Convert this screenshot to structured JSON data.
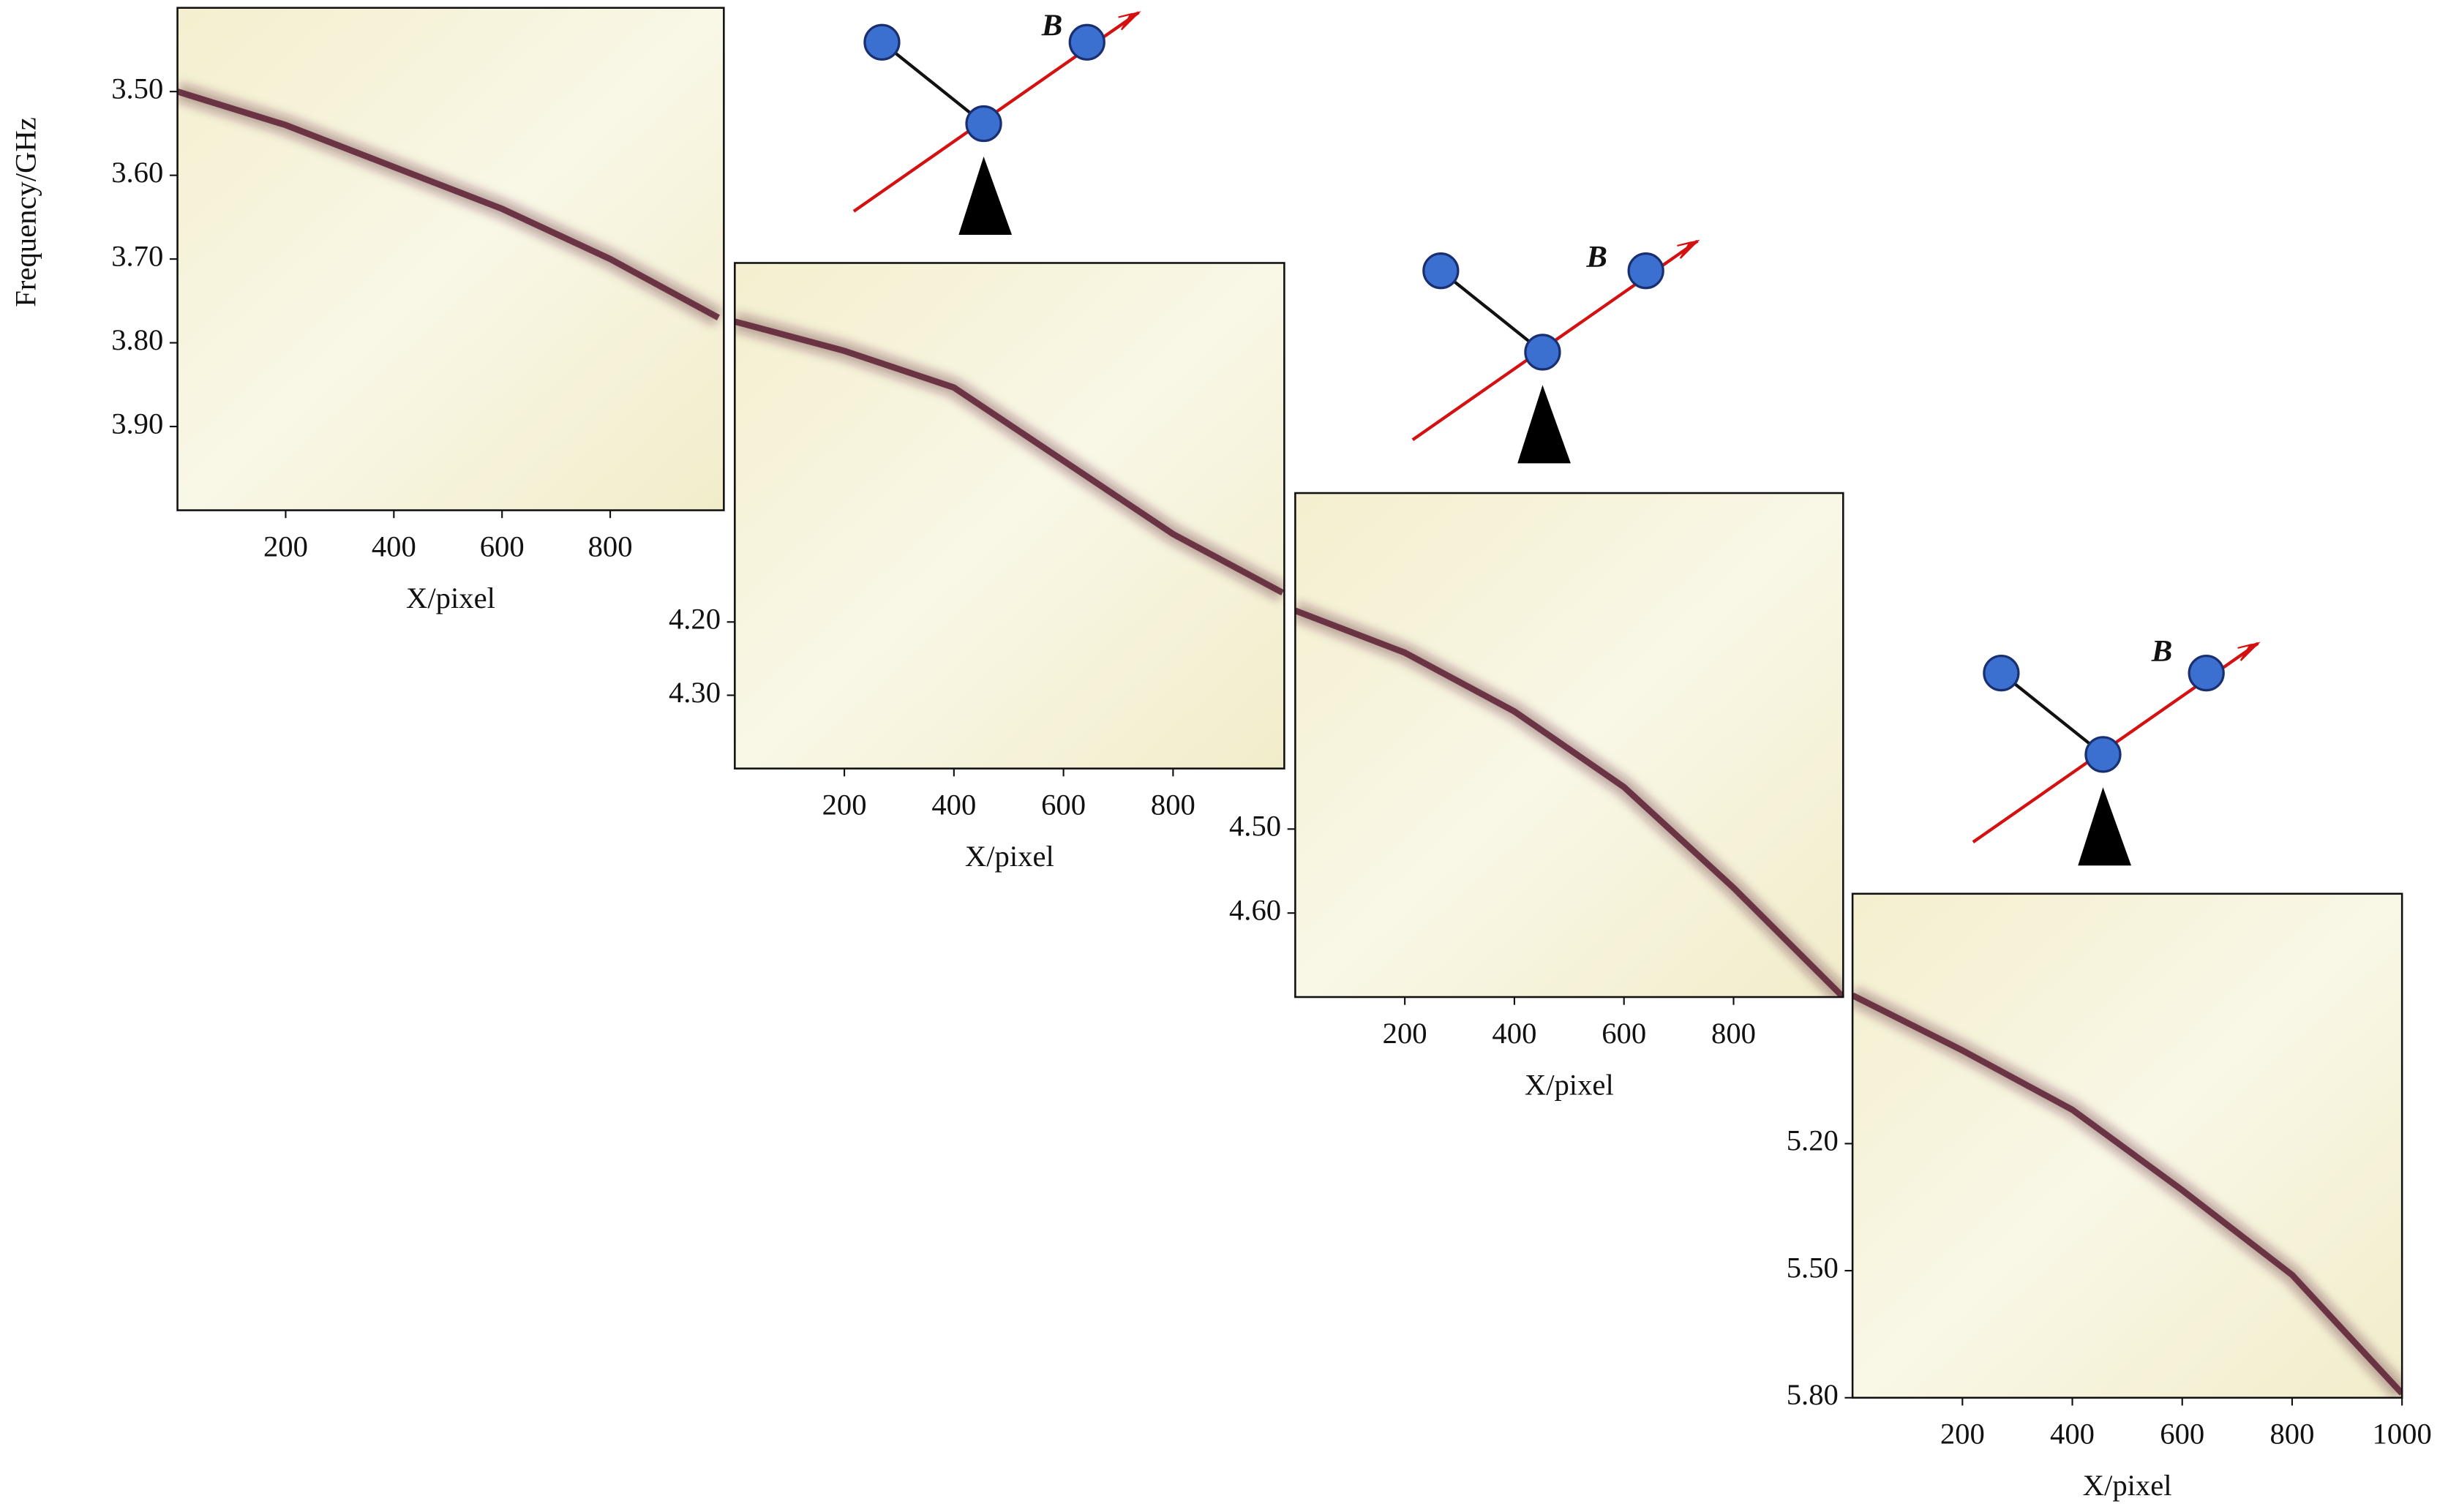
{
  "chart_data": [
    {
      "type": "line",
      "y_label": "Frequency/GHz",
      "x_label": "X/pixel",
      "annotation": "B",
      "color": "#5a1f33",
      "y_inverted": true,
      "x": [
        0,
        200,
        400,
        600,
        800,
        1000
      ],
      "values": [
        3.5,
        3.54,
        3.59,
        3.64,
        3.7,
        3.77
      ],
      "xlim": [
        0,
        1010
      ],
      "xticks": [
        200,
        400,
        600,
        800
      ],
      "ylim": [
        3.4,
        4.0
      ],
      "yticks": [
        {
          "value": 3.5,
          "label": "3.50"
        },
        {
          "value": 3.6,
          "label": "3.60"
        },
        {
          "value": 3.7,
          "label": "3.70"
        },
        {
          "value": 3.8,
          "label": "3.80"
        },
        {
          "value": 3.9,
          "label": "3.90"
        }
      ]
    },
    {
      "type": "line",
      "x_label": "X/pixel",
      "annotation": "B",
      "color": "#5a1f33",
      "y_inverted": true,
      "x": [
        0,
        200,
        400,
        600,
        800,
        1000
      ],
      "values": [
        3.79,
        3.83,
        3.88,
        3.98,
        4.08,
        4.16
      ],
      "xlim": [
        0,
        1003
      ],
      "xticks": [
        200,
        400,
        600,
        800
      ],
      "ylim": [
        3.71,
        4.4
      ],
      "yticks": [
        {
          "value": 4.2,
          "label": "4.20"
        },
        {
          "value": 4.3,
          "label": "4.30"
        }
      ]
    },
    {
      "type": "line",
      "x_label": "X/pixel",
      "annotation": "B",
      "color": "#5a1f33",
      "y_inverted": true,
      "x": [
        0,
        200,
        400,
        600,
        800,
        1000
      ],
      "values": [
        4.24,
        4.29,
        4.36,
        4.45,
        4.57,
        4.7
      ],
      "xlim": [
        0,
        1000
      ],
      "xticks": [
        200,
        400,
        600,
        800
      ],
      "ylim": [
        4.1,
        4.7
      ],
      "yticks": [
        {
          "value": 4.5,
          "label": "4.50"
        },
        {
          "value": 4.6,
          "label": "4.60"
        }
      ]
    },
    {
      "type": "line",
      "x_label": "X/pixel",
      "color": "#5a1f33",
      "y_inverted": true,
      "x": [
        0,
        200,
        400,
        600,
        800,
        1000
      ],
      "values": [
        4.85,
        4.98,
        5.12,
        5.31,
        5.51,
        5.79
      ],
      "xlim": [
        0,
        1000
      ],
      "xticks": [
        200,
        400,
        600,
        800,
        1000
      ],
      "ylim": [
        4.61,
        5.8
      ],
      "yticks": [
        {
          "value": 5.2,
          "label": "5.20"
        },
        {
          "value": 5.5,
          "label": "5.50"
        },
        {
          "value": 5.8,
          "label": "5.80"
        }
      ]
    }
  ]
}
